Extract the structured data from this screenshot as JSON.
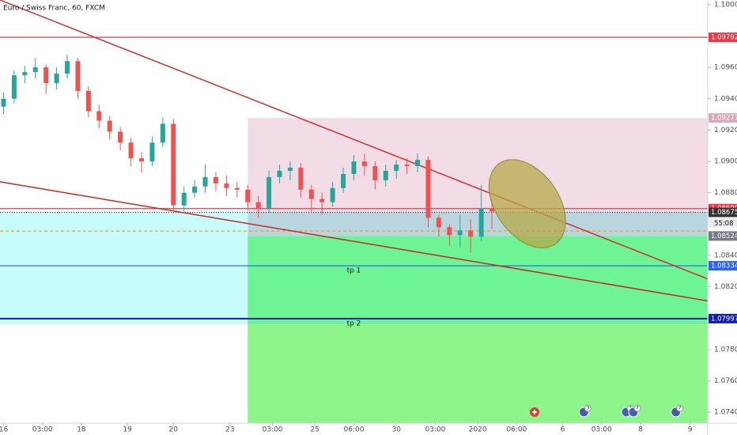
{
  "chart_data": {
    "type": "candlestick",
    "title": "Euro / Swiss Franc, 60, FXCM",
    "countdown": "55:08",
    "up_color": "#26a69a",
    "down_color": "#ef5350",
    "x": [
      1,
      4,
      7,
      10,
      13,
      16,
      19,
      22,
      25,
      28,
      31,
      34,
      37,
      40,
      43,
      46,
      49,
      52,
      55,
      58,
      61,
      64,
      67,
      70,
      73,
      76,
      79,
      82,
      85,
      88,
      91,
      94,
      97,
      100,
      103,
      106,
      109,
      112,
      115,
      118,
      121,
      124,
      127,
      130,
      133,
      136,
      139
    ],
    "open": [
      1.0935,
      1.094,
      1.0955,
      1.0957,
      1.096,
      1.095,
      1.0956,
      1.0964,
      1.0945,
      1.0932,
      1.0926,
      1.0919,
      1.0912,
      1.0902,
      1.09,
      1.0912,
      1.0924,
      1.0872,
      1.088,
      1.0884,
      1.089,
      1.0886,
      1.0883,
      1.0882,
      1.0874,
      1.087,
      1.089,
      1.0894,
      1.0896,
      1.0882,
      1.0876,
      1.0874,
      1.0883,
      1.0892,
      1.09,
      1.0897,
      1.0888,
      1.0894,
      1.0898,
      1.0897,
      1.0901,
      1.0864,
      1.0858,
      1.0853,
      1.0856,
      1.0852,
      1.087
    ],
    "high": [
      1.0944,
      1.0958,
      1.0961,
      1.0966,
      1.0962,
      1.096,
      1.0968,
      1.0966,
      1.0948,
      1.0936,
      1.0929,
      1.0922,
      1.0915,
      1.0906,
      1.0916,
      1.0928,
      1.0927,
      1.0884,
      1.0888,
      1.0898,
      1.0893,
      1.0891,
      1.0887,
      1.0885,
      1.0878,
      1.0894,
      1.0898,
      1.09,
      1.0899,
      1.0885,
      1.088,
      1.0887,
      1.0896,
      1.0904,
      1.0905,
      1.09,
      1.0898,
      1.0901,
      1.0902,
      1.0905,
      1.0903,
      1.0866,
      1.086,
      1.0866,
      1.0863,
      1.0885,
      1.0876
    ],
    "low": [
      1.093,
      1.0937,
      1.095,
      1.0953,
      1.0943,
      1.0946,
      1.0953,
      1.094,
      1.0928,
      1.0921,
      1.0914,
      1.0907,
      1.0897,
      1.0893,
      1.0897,
      1.0909,
      1.0868,
      1.0868,
      1.0877,
      1.088,
      1.0881,
      1.0878,
      1.0877,
      1.0869,
      1.0864,
      1.0867,
      1.0886,
      1.0888,
      1.0877,
      1.0868,
      1.0866,
      1.0871,
      1.088,
      1.0888,
      1.0891,
      1.0882,
      1.0884,
      1.0889,
      1.0892,
      1.0893,
      1.0858,
      1.0852,
      1.0846,
      1.0845,
      1.0842,
      1.0849,
      1.0857
    ],
    "close": [
      1.094,
      1.0955,
      1.0957,
      1.096,
      1.095,
      1.0956,
      1.0964,
      1.0945,
      1.0932,
      1.0926,
      1.0919,
      1.0912,
      1.0902,
      1.09,
      1.0912,
      1.0924,
      1.0872,
      1.088,
      1.0884,
      1.089,
      1.0886,
      1.0883,
      1.0882,
      1.0874,
      1.087,
      1.089,
      1.0894,
      1.0896,
      1.0882,
      1.0876,
      1.0874,
      1.0883,
      1.0892,
      1.09,
      1.0897,
      1.0888,
      1.0894,
      1.0898,
      1.0897,
      1.0901,
      1.0864,
      1.0858,
      1.0853,
      1.0856,
      1.0852,
      1.087,
      1.0868
    ],
    "xlim": [
      0,
      200
    ],
    "ylim": [
      1.0733,
      1.1003
    ],
    "xticks": [
      {
        "value": 1,
        "label": "16"
      },
      {
        "value": 12,
        "label": "03:00"
      },
      {
        "value": 23,
        "label": "18"
      },
      {
        "value": 36,
        "label": "19"
      },
      {
        "value": 49,
        "label": "20"
      },
      {
        "value": 65,
        "label": "23"
      },
      {
        "value": 77,
        "label": "03:00"
      },
      {
        "value": 89,
        "label": "25"
      },
      {
        "value": 100,
        "label": "06:00"
      },
      {
        "value": 112,
        "label": "30"
      },
      {
        "value": 123,
        "label": "03:00"
      },
      {
        "value": 135,
        "label": "2020"
      },
      {
        "value": 146,
        "label": "06:00"
      },
      {
        "value": 159,
        "label": "6"
      },
      {
        "value": 170,
        "label": "03:00"
      },
      {
        "value": 181,
        "label": "8"
      },
      {
        "value": 195,
        "label": "9"
      }
    ],
    "yticks": [
      {
        "value": 1.1,
        "label": "1.10000"
      },
      {
        "value": 1.096,
        "label": "1.09600"
      },
      {
        "value": 1.094,
        "label": "1.09400"
      },
      {
        "value": 1.092,
        "label": "1.09200"
      },
      {
        "value": 1.09,
        "label": "1.09000"
      },
      {
        "value": 1.088,
        "label": "1.08800"
      },
      {
        "value": 1.084,
        "label": "1.08400"
      },
      {
        "value": 1.082,
        "label": "1.08200"
      },
      {
        "value": 1.078,
        "label": "1.07800"
      },
      {
        "value": 1.076,
        "label": "1.07600"
      },
      {
        "value": 1.074,
        "label": "1.07400"
      }
    ],
    "zones": [
      {
        "x": [
          70,
          200
        ],
        "y": [
          1.09277,
          1.08675
        ],
        "color": "#f2dde6"
      },
      {
        "x": [
          70,
          200
        ],
        "y": [
          1.08675,
          1.08524
        ],
        "color": "#b9d6e0"
      },
      {
        "x": [
          0,
          70
        ],
        "y": [
          1.08675,
          1.0796
        ],
        "color": "#c8fcfc"
      },
      {
        "x": [
          70,
          200
        ],
        "y": [
          1.08524,
          1.0796
        ],
        "color": "#6ef495"
      },
      {
        "x": [
          70,
          200
        ],
        "y": [
          1.0796,
          1.0733
        ],
        "color": "#8df58a"
      }
    ],
    "trendlines": [
      {
        "x": [
          0,
          200
        ],
        "y": [
          1.1003,
          1.0825
        ],
        "color": "#d32f2f"
      },
      {
        "x": [
          0,
          200
        ],
        "y": [
          1.0887,
          1.0811
        ],
        "color": "#c62828"
      }
    ],
    "price_lines": [
      {
        "value": 1.09792,
        "color": "#f23645",
        "style": "solid",
        "line": true,
        "tag": true
      },
      {
        "value": 1.09277,
        "color": "#d9a9bb",
        "style": "solid",
        "line": false,
        "tag": true
      },
      {
        "value": 1.08699,
        "color": "#f23645",
        "style": "solid",
        "line": true,
        "tag": true
      },
      {
        "value": 1.08675,
        "color": "#333333",
        "style": "dotted",
        "line": true,
        "tag": true
      },
      {
        "value": 1.08556,
        "color": "#ff9800",
        "style": "dashed",
        "line": true,
        "tag": false
      },
      {
        "value": 1.08524,
        "color": "#787b86",
        "style": "solid",
        "line": false,
        "tag": true
      },
      {
        "value": 1.08334,
        "color": "#2962ff",
        "style": "solid",
        "line": true,
        "tag": true
      },
      {
        "value": 1.07997,
        "color": "#0d1fa8",
        "style": "solid",
        "line": true,
        "tag": true
      }
    ],
    "annotations": [
      {
        "text": "tp 1",
        "x": 100,
        "y": 1.08334
      },
      {
        "text": "tp 2",
        "x": 100,
        "y": 1.07997
      }
    ],
    "ellipse": {
      "x": 149,
      "y": 1.0873,
      "color": "#b5a84a"
    },
    "events": [
      {
        "x": 165,
        "label": "3"
      },
      {
        "x": 177,
        "label": "3"
      },
      {
        "x": 179,
        "label": "7"
      },
      {
        "x": 191,
        "label": "7"
      }
    ]
  }
}
